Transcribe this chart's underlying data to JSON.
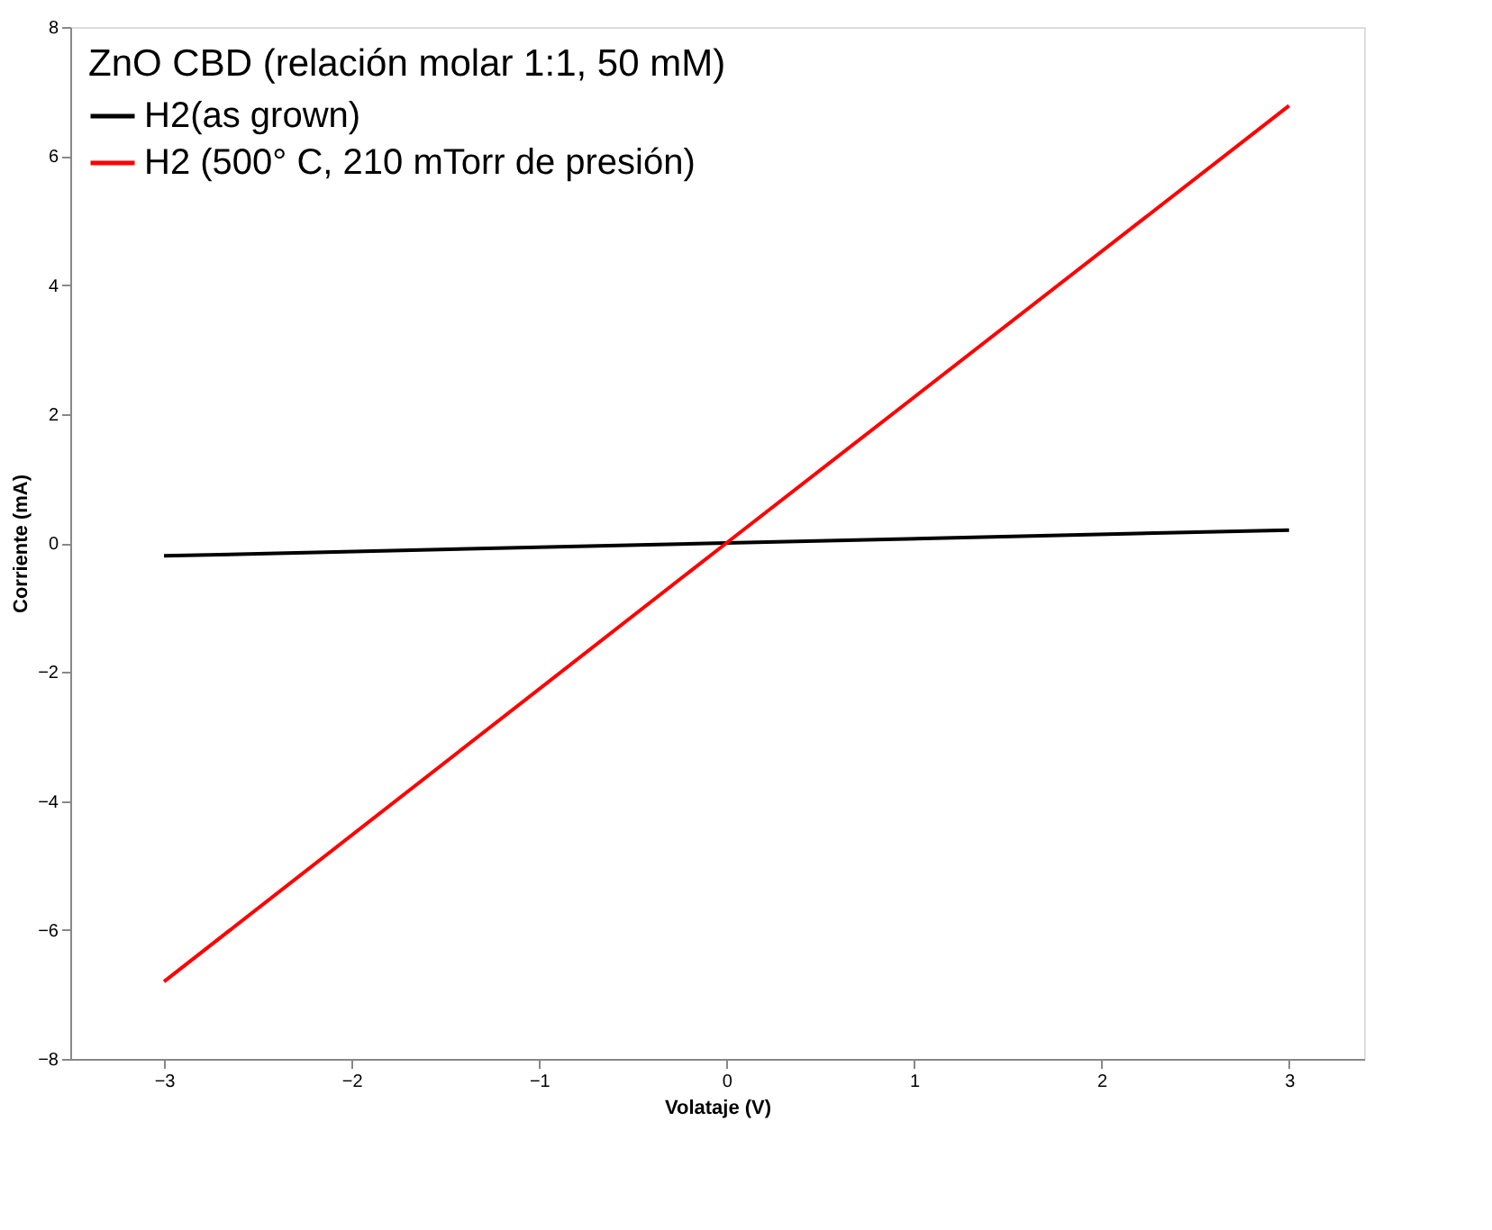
{
  "chart_data": {
    "type": "line",
    "xlabel": "Volataje (V)",
    "ylabel": "Corriente (mA)",
    "legend_title": "ZnO CBD (relación molar 1:1, 50 mM)",
    "series": [
      {
        "name": "H2(as grown)",
        "color": "#000000",
        "x": [
          -3,
          0,
          3
        ],
        "values": [
          -0.2,
          0,
          0.2
        ]
      },
      {
        "name": "H2 (500° C, 210 mTorr de presión)",
        "color": "#ff0000",
        "x": [
          -3,
          0,
          3
        ],
        "values": [
          -6.8,
          0,
          6.78
        ]
      }
    ],
    "xlim": [
      -3.5,
      3.4
    ],
    "xticks": [
      -3,
      -2,
      -1,
      0,
      1,
      2,
      3
    ],
    "ylim": [
      -8,
      8
    ],
    "yticks": [
      -8,
      -6,
      -4,
      -2,
      0,
      2,
      4,
      6,
      8
    ],
    "grid": false,
    "legend": "top left",
    "marker": "none",
    "line_style": "solid"
  }
}
